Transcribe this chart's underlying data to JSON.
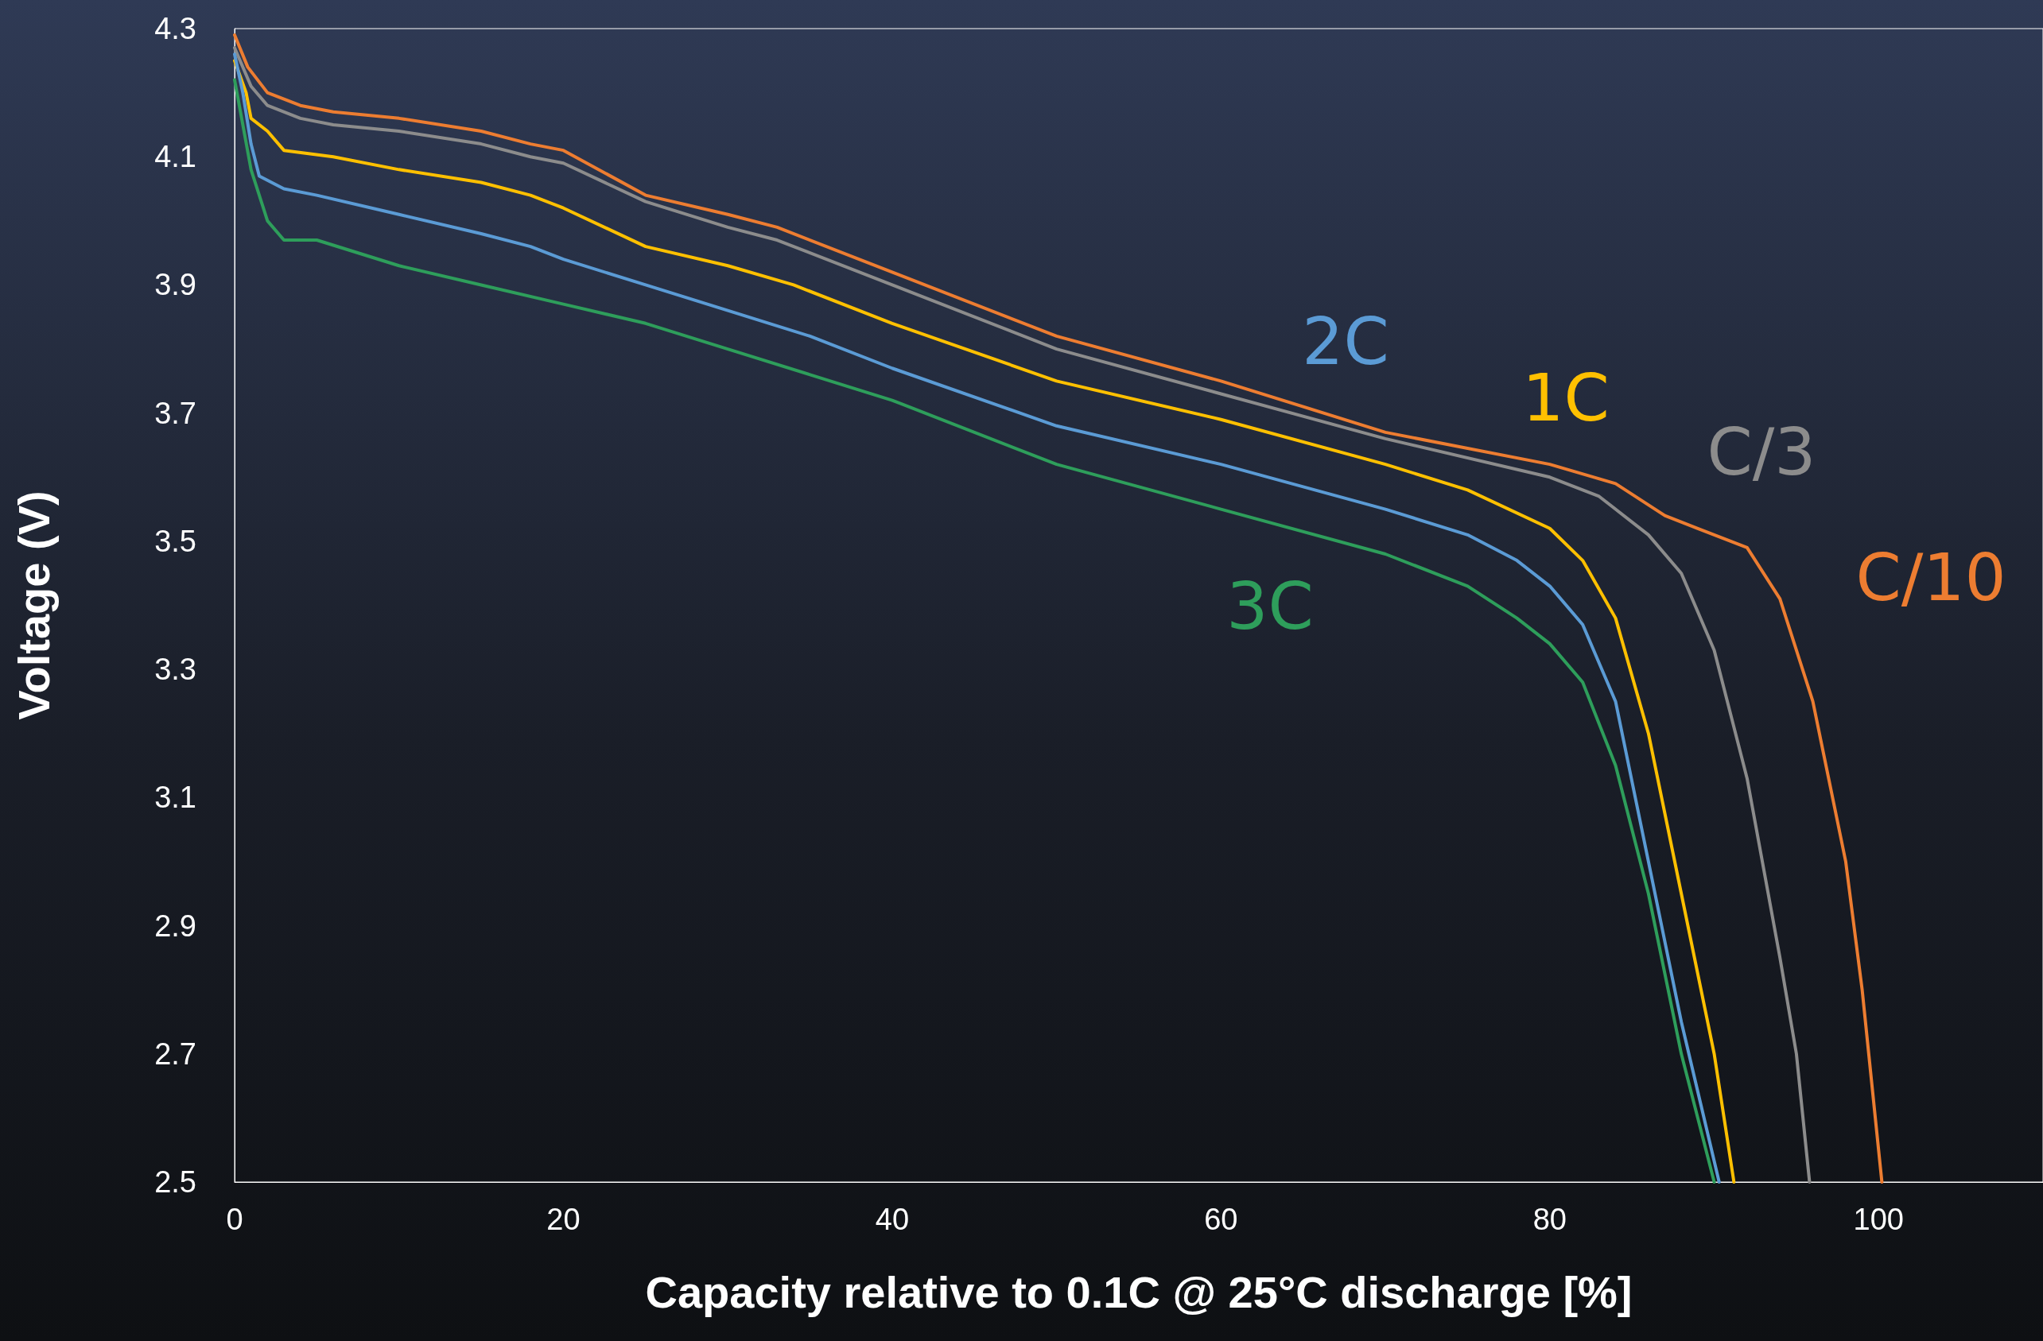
{
  "chart_data": {
    "type": "line",
    "xlabel": "Capacity relative to 0.1C @ 25°C discharge [%]",
    "ylabel": "Voltage (V)",
    "xlim": [
      0,
      110
    ],
    "xticks": [
      0,
      20,
      40,
      60,
      80,
      100
    ],
    "ylim": [
      2.5,
      4.3
    ],
    "yticks": [
      2.5,
      2.7,
      2.9,
      3.1,
      3.3,
      3.5,
      3.7,
      3.9,
      4.1,
      4.3
    ],
    "grid": false,
    "legend": false,
    "marker": "none",
    "line_style": "solid",
    "series": [
      {
        "name": "C/10",
        "color": "#ed7d31",
        "x": [
          0,
          0.8,
          2,
          4,
          6,
          10,
          15,
          18,
          20,
          25,
          30,
          33,
          40,
          50,
          60,
          70,
          80,
          84,
          87,
          89,
          92,
          94,
          96,
          98,
          99,
          100.2
        ],
        "values": [
          4.29,
          4.24,
          4.2,
          4.18,
          4.17,
          4.16,
          4.14,
          4.12,
          4.11,
          4.04,
          4.01,
          3.99,
          3.92,
          3.82,
          3.75,
          3.67,
          3.62,
          3.59,
          3.54,
          3.52,
          3.49,
          3.41,
          3.25,
          3.0,
          2.8,
          2.5
        ]
      },
      {
        "name": "C/3",
        "color": "#8c8c8c",
        "x": [
          0,
          1,
          2,
          4,
          6,
          10,
          15,
          18,
          20,
          25,
          30,
          33,
          40,
          50,
          60,
          70,
          80,
          83,
          86,
          88,
          90,
          92,
          94,
          95,
          95.8
        ],
        "values": [
          4.27,
          4.21,
          4.18,
          4.16,
          4.15,
          4.14,
          4.12,
          4.1,
          4.09,
          4.03,
          3.99,
          3.97,
          3.9,
          3.8,
          3.73,
          3.66,
          3.6,
          3.57,
          3.51,
          3.45,
          3.33,
          3.13,
          2.85,
          2.7,
          2.5
        ]
      },
      {
        "name": "1C",
        "color": "#ffc000",
        "x": [
          0,
          0.7,
          1,
          2,
          3,
          6,
          10,
          15,
          18,
          20,
          25,
          30,
          34,
          40,
          50,
          60,
          70,
          75,
          80,
          82,
          84,
          86,
          88,
          90,
          91.2
        ],
        "values": [
          4.25,
          4.2,
          4.16,
          4.14,
          4.11,
          4.1,
          4.08,
          4.06,
          4.04,
          4.02,
          3.96,
          3.93,
          3.9,
          3.84,
          3.75,
          3.69,
          3.62,
          3.58,
          3.52,
          3.47,
          3.38,
          3.2,
          2.95,
          2.7,
          2.5
        ]
      },
      {
        "name": "2C",
        "color": "#5b9bd5",
        "x": [
          0,
          0.5,
          1,
          1.5,
          3,
          5,
          10,
          15,
          18,
          20,
          25,
          30,
          35,
          40,
          50,
          60,
          70,
          75,
          78,
          80,
          82,
          84,
          86,
          88,
          90.3
        ],
        "values": [
          4.26,
          4.2,
          4.12,
          4.07,
          4.05,
          4.04,
          4.01,
          3.98,
          3.96,
          3.94,
          3.9,
          3.86,
          3.82,
          3.77,
          3.68,
          3.62,
          3.55,
          3.51,
          3.47,
          3.43,
          3.37,
          3.25,
          3.0,
          2.75,
          2.5
        ]
      },
      {
        "name": "3C",
        "color": "#2e9e5b",
        "x": [
          0,
          0.5,
          1,
          2,
          3,
          5,
          10,
          15,
          20,
          25,
          30,
          35,
          40,
          50,
          60,
          70,
          75,
          78,
          80,
          82,
          84,
          86,
          88,
          90
        ],
        "values": [
          4.22,
          4.15,
          4.08,
          4.0,
          3.97,
          3.97,
          3.93,
          3.9,
          3.87,
          3.84,
          3.8,
          3.76,
          3.72,
          3.62,
          3.55,
          3.48,
          3.43,
          3.38,
          3.34,
          3.28,
          3.15,
          2.95,
          2.7,
          2.5
        ]
      }
    ]
  }
}
